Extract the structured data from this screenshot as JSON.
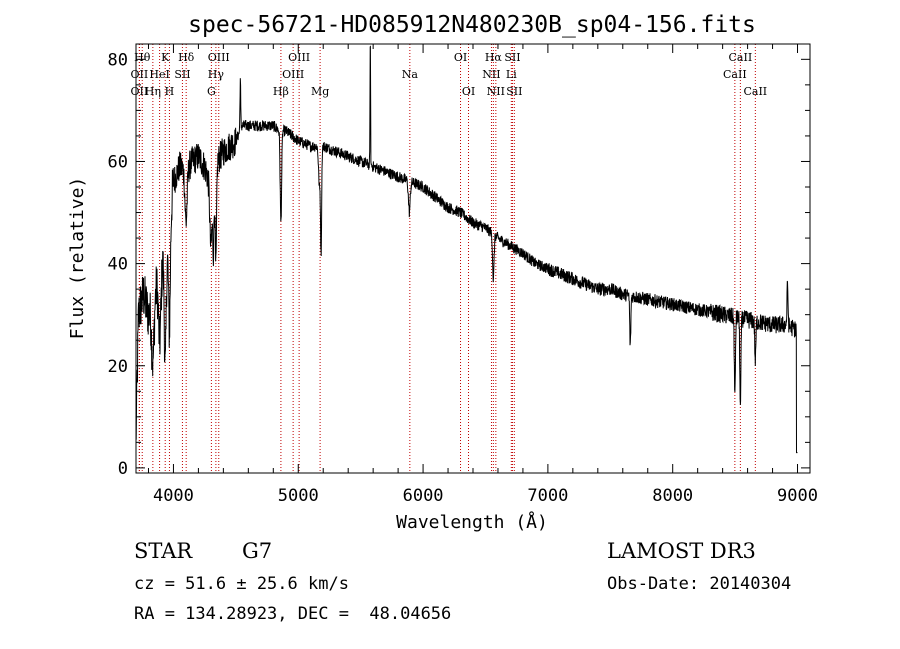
{
  "chart_data": {
    "type": "line",
    "title": "spec-56721-HD085912N480230B_sp04-156.fits",
    "xlabel": "Wavelength (Å)",
    "ylabel": "Flux (relative)",
    "xlim": [
      3700,
      9100
    ],
    "ylim": [
      -1,
      83
    ],
    "x_ticks": [
      4000,
      5000,
      6000,
      7000,
      8000,
      9000
    ],
    "y_ticks": [
      0,
      20,
      40,
      60,
      80
    ],
    "grid": false,
    "line_color": "#000000",
    "marker_color": "#c00000",
    "continuum": [
      [
        3700,
        5
      ],
      [
        3720,
        30
      ],
      [
        3760,
        34
      ],
      [
        3800,
        30
      ],
      [
        3850,
        34
      ],
      [
        3900,
        40
      ],
      [
        3950,
        42
      ],
      [
        4000,
        56
      ],
      [
        4050,
        59
      ],
      [
        4100,
        58
      ],
      [
        4150,
        60
      ],
      [
        4200,
        61
      ],
      [
        4250,
        59
      ],
      [
        4300,
        55
      ],
      [
        4350,
        60
      ],
      [
        4400,
        62
      ],
      [
        4450,
        63
      ],
      [
        4500,
        64
      ],
      [
        4550,
        67
      ],
      [
        4600,
        67
      ],
      [
        4700,
        67
      ],
      [
        4800,
        67
      ],
      [
        4850,
        66
      ],
      [
        4900,
        66
      ],
      [
        5000,
        64
      ],
      [
        5100,
        63
      ],
      [
        5200,
        63
      ],
      [
        5300,
        62
      ],
      [
        5400,
        61
      ],
      [
        5500,
        60
      ],
      [
        5600,
        59
      ],
      [
        5700,
        58
      ],
      [
        5800,
        57
      ],
      [
        5900,
        56
      ],
      [
        6000,
        55
      ],
      [
        6100,
        53
      ],
      [
        6200,
        51
      ],
      [
        6300,
        50
      ],
      [
        6400,
        48
      ],
      [
        6500,
        47
      ],
      [
        6600,
        45
      ],
      [
        6700,
        43.5
      ],
      [
        6800,
        42
      ],
      [
        6900,
        40
      ],
      [
        7000,
        39
      ],
      [
        7100,
        38
      ],
      [
        7200,
        37
      ],
      [
        7300,
        36
      ],
      [
        7400,
        35
      ],
      [
        7500,
        35
      ],
      [
        7600,
        34
      ],
      [
        7700,
        33.5
      ],
      [
        7800,
        33
      ],
      [
        7900,
        32.5
      ],
      [
        8000,
        32
      ],
      [
        8100,
        31.5
      ],
      [
        8200,
        31
      ],
      [
        8300,
        30.5
      ],
      [
        8400,
        30
      ],
      [
        8500,
        29.5
      ],
      [
        8600,
        29
      ],
      [
        8700,
        28.5
      ],
      [
        8800,
        28
      ],
      [
        8900,
        28
      ],
      [
        8950,
        27.5
      ],
      [
        9000,
        27
      ]
    ],
    "absorption_features": [
      {
        "x": 3835,
        "depth": 12,
        "width": 14
      },
      {
        "x": 3890,
        "depth": 14,
        "width": 14
      },
      {
        "x": 3934,
        "depth": 22,
        "width": 10
      },
      {
        "x": 3968,
        "depth": 20,
        "width": 10
      },
      {
        "x": 4101,
        "depth": 10,
        "width": 12
      },
      {
        "x": 4300,
        "depth": 12,
        "width": 12
      },
      {
        "x": 4320,
        "depth": 14,
        "width": 8
      },
      {
        "x": 4340,
        "depth": 20,
        "width": 8
      },
      {
        "x": 4861,
        "depth": 18,
        "width": 8
      },
      {
        "x": 5170,
        "depth": 8,
        "width": 10
      },
      {
        "x": 5183,
        "depth": 20,
        "width": 6
      },
      {
        "x": 5890,
        "depth": 6,
        "width": 10
      },
      {
        "x": 6563,
        "depth": 9,
        "width": 8
      },
      {
        "x": 7660,
        "depth": 10,
        "width": 6
      },
      {
        "x": 8498,
        "depth": 16,
        "width": 6
      },
      {
        "x": 8542,
        "depth": 18,
        "width": 6
      },
      {
        "x": 8662,
        "depth": 8,
        "width": 6
      }
    ],
    "emission_features": [
      {
        "x": 4536,
        "height": 10,
        "width": 4
      },
      {
        "x": 5577,
        "height": 27,
        "width": 3
      },
      {
        "x": 8920,
        "height": 8,
        "width": 6
      }
    ],
    "line_markers": [
      {
        "x": 3750,
        "row": 0,
        "label": "Hθ"
      },
      {
        "x": 3727,
        "row": 1,
        "label": "OII"
      },
      {
        "x": 3727,
        "row": 2,
        "label": "OII"
      },
      {
        "x": 3835,
        "row": 2,
        "label": "Hη"
      },
      {
        "x": 3889,
        "row": 1,
        "label": "HeI"
      },
      {
        "x": 3934,
        "row": 0,
        "label": "K"
      },
      {
        "x": 3968,
        "row": 2,
        "label": "H"
      },
      {
        "x": 4072,
        "row": 1,
        "label": "SII"
      },
      {
        "x": 4102,
        "row": 0,
        "label": "Hδ"
      },
      {
        "x": 4304,
        "row": 2,
        "label": "G"
      },
      {
        "x": 4340,
        "row": 1,
        "label": "Hγ"
      },
      {
        "x": 4363,
        "row": 0,
        "label": "OIII"
      },
      {
        "x": 4861,
        "row": 2,
        "label": "Hβ"
      },
      {
        "x": 4959,
        "row": 1,
        "label": "OIII"
      },
      {
        "x": 5007,
        "row": 0,
        "label": "OIII"
      },
      {
        "x": 5175,
        "row": 2,
        "label": "Mg"
      },
      {
        "x": 5894,
        "row": 1,
        "label": "Na"
      },
      {
        "x": 6300,
        "row": 0,
        "label": "OI"
      },
      {
        "x": 6364,
        "row": 2,
        "label": "OI"
      },
      {
        "x": 6548,
        "row": 1,
        "label": "NII"
      },
      {
        "x": 6563,
        "row": 0,
        "label": "Hα"
      },
      {
        "x": 6583,
        "row": 2,
        "label": "NII"
      },
      {
        "x": 6707,
        "row": 1,
        "label": "Li"
      },
      {
        "x": 6716,
        "row": 0,
        "label": "SII"
      },
      {
        "x": 6731,
        "row": 2,
        "label": "SII"
      },
      {
        "x": 8498,
        "row": 1,
        "label": "CaII"
      },
      {
        "x": 8542,
        "row": 0,
        "label": "CaII"
      },
      {
        "x": 8662,
        "row": 2,
        "label": "CaII"
      }
    ]
  },
  "info": {
    "object_class": "STAR",
    "subclass": "G7",
    "redshift": "cz = 51.6 ± 25.6 km/s",
    "coords": "RA = 134.28923, DEC =  48.04656",
    "survey": "LAMOST DR3",
    "obs_date": "Obs-Date: 20140304"
  }
}
